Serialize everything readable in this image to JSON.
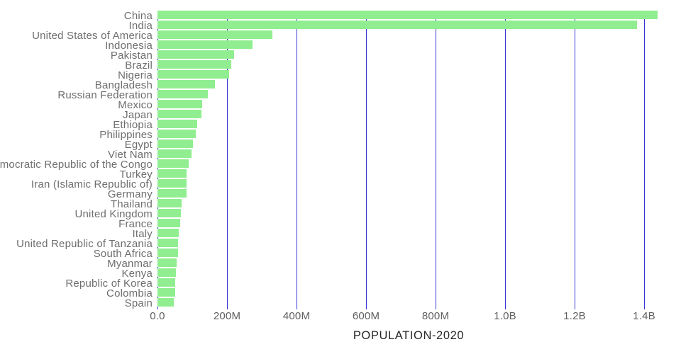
{
  "chart_data": {
    "type": "bar",
    "orientation": "horizontal",
    "title": "",
    "xlabel": "POPULATION-2020",
    "ylabel": "",
    "grid": true,
    "legend": false,
    "xlim_millions": [
      0,
      1500
    ],
    "categories": [
      "China",
      "India",
      "United States of America",
      "Indonesia",
      "Pakistan",
      "Brazil",
      "Nigeria",
      "Bangladesh",
      "Russian Federation",
      "Mexico",
      "Japan",
      "Ethiopia",
      "Philippines",
      "Egypt",
      "Viet Nam",
      "Democratic Republic of the Congo",
      "Turkey",
      "Iran (Islamic Republic of)",
      "Germany",
      "Thailand",
      "United Kingdom",
      "France",
      "Italy",
      "United Republic of Tanzania",
      "South Africa",
      "Myanmar",
      "Kenya",
      "Republic of Korea",
      "Colombia",
      "Spain"
    ],
    "values_millions": [
      1439.3,
      1380.0,
      331.0,
      273.5,
      220.9,
      212.6,
      206.1,
      164.7,
      145.9,
      128.9,
      126.5,
      115.0,
      109.6,
      102.3,
      97.3,
      89.6,
      84.3,
      84.0,
      83.8,
      69.8,
      67.9,
      65.3,
      60.5,
      59.7,
      59.3,
      54.4,
      53.8,
      51.3,
      50.9,
      46.8
    ],
    "xticks": {
      "labels": [
        "0.0",
        "200M",
        "400M",
        "600M",
        "800M",
        "1.0B",
        "1.2B",
        "1.4B"
      ],
      "values_millions": [
        0,
        200,
        400,
        600,
        800,
        1000,
        1200,
        1400
      ]
    },
    "colors": {
      "bar": "#90ee90",
      "gridline": "#3636d6",
      "category_label": "#6e6e6e",
      "tick_label": "#5e5e5e",
      "axis_title": "#262626",
      "background": "#ffffff"
    }
  }
}
